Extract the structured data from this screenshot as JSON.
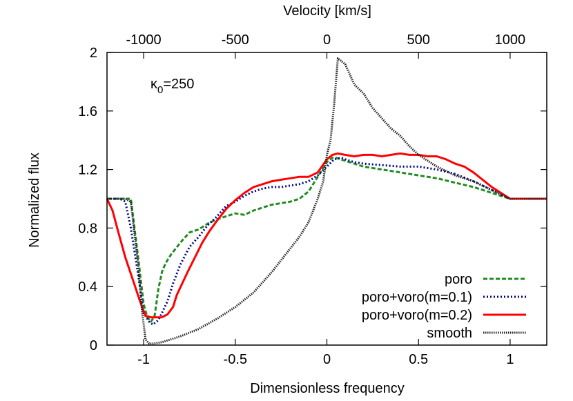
{
  "chart_data": {
    "type": "line",
    "xlabel": "Dimensionless frequency",
    "x2label": "Velocity [km/s]",
    "ylabel": "Normalized flux",
    "xlim": [
      -1.2,
      1.2
    ],
    "ylim": [
      0,
      2
    ],
    "x_ticks": [
      -1,
      -0.5,
      0,
      0.5,
      1
    ],
    "x_tick_labels": [
      "-1",
      "-0.5",
      "0",
      "0.5",
      "1"
    ],
    "x2_ticks": [
      -1000,
      -500,
      0,
      500,
      1000
    ],
    "x2_tick_labels": [
      "-1000",
      "-500",
      "0",
      "500",
      "1000"
    ],
    "x2_lim": [
      -1200,
      1200
    ],
    "y_ticks": [
      0,
      0.4,
      0.8,
      1.2,
      1.6,
      2
    ],
    "y_tick_labels": [
      "0",
      "0.4",
      "0.8",
      "1.2",
      "1.6",
      "2"
    ],
    "annotation": {
      "base": "κ",
      "sub": "0",
      "rest": "=250"
    },
    "grid": false,
    "legend_position": "bottom-right",
    "series": [
      {
        "name": "poro",
        "color": "#228b22",
        "dash": "6,3",
        "width": 3,
        "x": [
          -1.2,
          -1.1,
          -1.07,
          -1.03,
          -1.0,
          -0.98,
          -0.96,
          -0.94,
          -0.92,
          -0.9,
          -0.88,
          -0.85,
          -0.8,
          -0.75,
          -0.7,
          -0.65,
          -0.6,
          -0.55,
          -0.5,
          -0.45,
          -0.4,
          -0.35,
          -0.3,
          -0.25,
          -0.2,
          -0.15,
          -0.1,
          -0.05,
          0.0,
          0.03,
          0.05,
          0.1,
          0.15,
          0.2,
          0.3,
          0.4,
          0.5,
          0.6,
          0.7,
          0.8,
          0.9,
          0.95,
          1.0,
          1.1,
          1.2
        ],
        "y": [
          1.0,
          1.0,
          1.0,
          0.6,
          0.28,
          0.19,
          0.16,
          0.2,
          0.38,
          0.5,
          0.56,
          0.62,
          0.7,
          0.77,
          0.79,
          0.83,
          0.86,
          0.88,
          0.9,
          0.89,
          0.92,
          0.94,
          0.96,
          0.97,
          0.98,
          1.0,
          1.05,
          1.15,
          1.25,
          1.28,
          1.28,
          1.26,
          1.24,
          1.22,
          1.2,
          1.18,
          1.16,
          1.14,
          1.11,
          1.08,
          1.04,
          1.02,
          1.0,
          1.0,
          1.0
        ]
      },
      {
        "name": "poro+voro(m=0.1)",
        "color": "#00008b",
        "dash": "2,3",
        "width": 3,
        "x": [
          -1.2,
          -1.13,
          -1.1,
          -1.07,
          -1.03,
          -1.0,
          -0.97,
          -0.95,
          -0.92,
          -0.9,
          -0.87,
          -0.84,
          -0.8,
          -0.75,
          -0.7,
          -0.65,
          -0.6,
          -0.55,
          -0.5,
          -0.45,
          -0.4,
          -0.35,
          -0.3,
          -0.25,
          -0.2,
          -0.15,
          -0.1,
          -0.05,
          0.0,
          0.04,
          0.08,
          0.1,
          0.15,
          0.2,
          0.3,
          0.4,
          0.5,
          0.6,
          0.7,
          0.8,
          0.9,
          0.95,
          1.0,
          1.1,
          1.2
        ],
        "y": [
          1.0,
          1.0,
          0.98,
          0.8,
          0.48,
          0.22,
          0.16,
          0.14,
          0.17,
          0.22,
          0.3,
          0.42,
          0.55,
          0.67,
          0.74,
          0.82,
          0.88,
          0.95,
          0.98,
          1.02,
          1.05,
          1.07,
          1.08,
          1.08,
          1.09,
          1.1,
          1.12,
          1.16,
          1.22,
          1.27,
          1.28,
          1.27,
          1.25,
          1.24,
          1.23,
          1.22,
          1.22,
          1.2,
          1.17,
          1.12,
          1.06,
          1.03,
          1.0,
          1.0,
          1.0
        ]
      },
      {
        "name": "poro+voro(m=0.2)",
        "color": "#ff0000",
        "dash": "",
        "width": 3,
        "x": [
          -1.2,
          -1.17,
          -1.14,
          -1.1,
          -1.06,
          -1.02,
          -0.99,
          -0.96,
          -0.93,
          -0.9,
          -0.87,
          -0.84,
          -0.82,
          -0.79,
          -0.76,
          -0.72,
          -0.68,
          -0.64,
          -0.6,
          -0.55,
          -0.5,
          -0.45,
          -0.4,
          -0.35,
          -0.3,
          -0.25,
          -0.2,
          -0.15,
          -0.1,
          -0.05,
          0.0,
          0.03,
          0.06,
          0.1,
          0.15,
          0.2,
          0.25,
          0.3,
          0.35,
          0.4,
          0.45,
          0.5,
          0.55,
          0.6,
          0.65,
          0.7,
          0.75,
          0.8,
          0.85,
          0.9,
          0.95,
          1.0,
          1.1,
          1.2
        ],
        "y": [
          1.0,
          0.92,
          0.78,
          0.6,
          0.45,
          0.3,
          0.2,
          0.19,
          0.19,
          0.19,
          0.21,
          0.26,
          0.34,
          0.42,
          0.5,
          0.6,
          0.7,
          0.78,
          0.85,
          0.93,
          0.99,
          1.04,
          1.08,
          1.1,
          1.12,
          1.13,
          1.14,
          1.15,
          1.15,
          1.18,
          1.27,
          1.3,
          1.31,
          1.3,
          1.29,
          1.3,
          1.3,
          1.29,
          1.3,
          1.31,
          1.3,
          1.3,
          1.29,
          1.29,
          1.27,
          1.24,
          1.22,
          1.18,
          1.13,
          1.08,
          1.04,
          1.0,
          1.0,
          1.0
        ]
      },
      {
        "name": "smooth",
        "color": "#222222",
        "dash": "1.5,1.5",
        "width": 3,
        "x": [
          -1.2,
          -1.1,
          -1.07,
          -1.03,
          -1.01,
          -0.99,
          -0.97,
          -0.95,
          -0.9,
          -0.8,
          -0.7,
          -0.6,
          -0.5,
          -0.4,
          -0.3,
          -0.2,
          -0.15,
          -0.1,
          -0.05,
          -0.02,
          0.0,
          0.02,
          0.04,
          0.06,
          0.1,
          0.15,
          0.2,
          0.25,
          0.3,
          0.35,
          0.4,
          0.45,
          0.5,
          0.55,
          0.6,
          0.7,
          0.8,
          0.9,
          0.95,
          1.0,
          1.1,
          1.2
        ],
        "y": [
          1.0,
          1.0,
          0.98,
          0.55,
          0.25,
          0.04,
          0.01,
          0.01,
          0.02,
          0.06,
          0.11,
          0.18,
          0.26,
          0.36,
          0.5,
          0.66,
          0.74,
          0.84,
          1.0,
          1.12,
          1.3,
          1.4,
          1.65,
          1.96,
          1.92,
          1.78,
          1.72,
          1.62,
          1.55,
          1.48,
          1.43,
          1.36,
          1.3,
          1.26,
          1.22,
          1.16,
          1.12,
          1.06,
          1.03,
          1.0,
          1.0,
          1.0
        ]
      }
    ]
  }
}
